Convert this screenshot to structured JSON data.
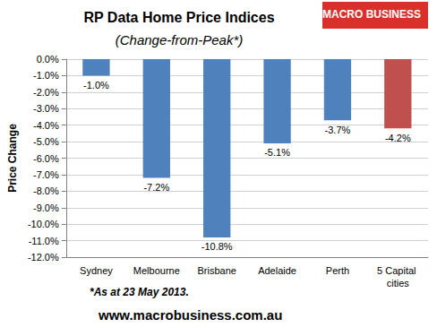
{
  "chart_data": {
    "type": "bar",
    "title": "RP Data Home Price Indices",
    "subtitle": "(Change-from-Peak*)",
    "y_label": "Price Change",
    "categories": [
      "Sydney",
      "Melbourne",
      "Brisbane",
      "Adelaide",
      "Perth",
      "5 Capital cities"
    ],
    "values": [
      -1.0,
      -7.2,
      -10.8,
      -5.1,
      -3.7,
      -4.2
    ],
    "value_labels": [
      "-1.0%",
      "-7.2%",
      "-10.8%",
      "-5.1%",
      "-3.7%",
      "-4.2%"
    ],
    "colors": [
      "#4f81bd",
      "#4f81bd",
      "#4f81bd",
      "#4f81bd",
      "#4f81bd",
      "#c0504d"
    ],
    "ylim": [
      -12,
      0
    ],
    "yticks": [
      {
        "value": 0,
        "label": "0.0%"
      },
      {
        "value": -1,
        "label": "-1.0%"
      },
      {
        "value": -2,
        "label": "-2.0%"
      },
      {
        "value": -3,
        "label": "-3.0%"
      },
      {
        "value": -4,
        "label": "-4.0%"
      },
      {
        "value": -5,
        "label": "-5.0%"
      },
      {
        "value": -6,
        "label": "-6.0%"
      },
      {
        "value": -7,
        "label": "-7.0%"
      },
      {
        "value": -8,
        "label": "-8.0%"
      },
      {
        "value": -9,
        "label": "-9.0%"
      },
      {
        "value": -10,
        "label": "-10.0%"
      },
      {
        "value": -11,
        "label": "-11.0%"
      },
      {
        "value": -12,
        "label": "-12.0%"
      }
    ],
    "grid": true,
    "data_labels": true,
    "annotations": [
      "*As at 23 May 2013.",
      "www.macrobusiness.com.au",
      "MACRO BUSINESS"
    ]
  }
}
